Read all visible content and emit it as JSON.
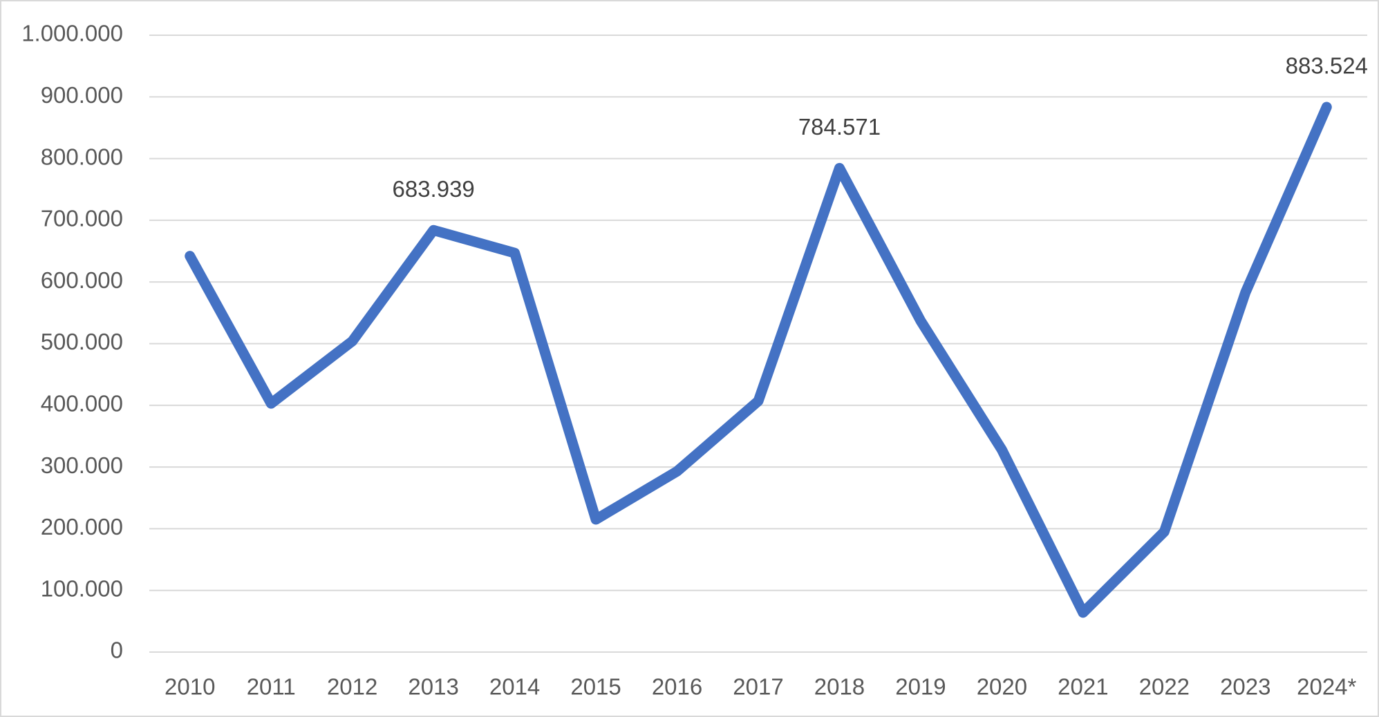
{
  "chart_data": {
    "type": "line",
    "categories": [
      "2010",
      "2011",
      "2012",
      "2013",
      "2014",
      "2015",
      "2016",
      "2017",
      "2018",
      "2019",
      "2020",
      "2021",
      "2022",
      "2023",
      "2024*"
    ],
    "series": [
      {
        "color": "#4472c4",
        "values": [
          642000,
          403000,
          504000,
          683939,
          647000,
          215000,
          293000,
          407000,
          784571,
          537000,
          328000,
          64000,
          195000,
          583000,
          883524
        ],
        "value_labels": [
          null,
          null,
          null,
          "683.939",
          null,
          null,
          null,
          null,
          "784.571",
          null,
          null,
          null,
          null,
          null,
          "883.524"
        ]
      }
    ],
    "ylim": [
      0,
      1000000
    ],
    "yticks": [
      0,
      {
        "value": 100000,
        "label": "100.000"
      },
      {
        "value": 200000,
        "label": "200.000"
      },
      {
        "value": 300000,
        "label": "300.000"
      },
      {
        "value": 400000,
        "label": "400.000"
      },
      {
        "value": 500000,
        "label": "500.000"
      },
      {
        "value": 600000,
        "label": "600.000"
      },
      {
        "value": 700000,
        "label": "700.000"
      },
      {
        "value": 800000,
        "label": "800.000"
      },
      {
        "value": 900000,
        "label": "900.000"
      },
      {
        "value": 1000000,
        "label": "1.000.000"
      }
    ],
    "grid": true
  }
}
